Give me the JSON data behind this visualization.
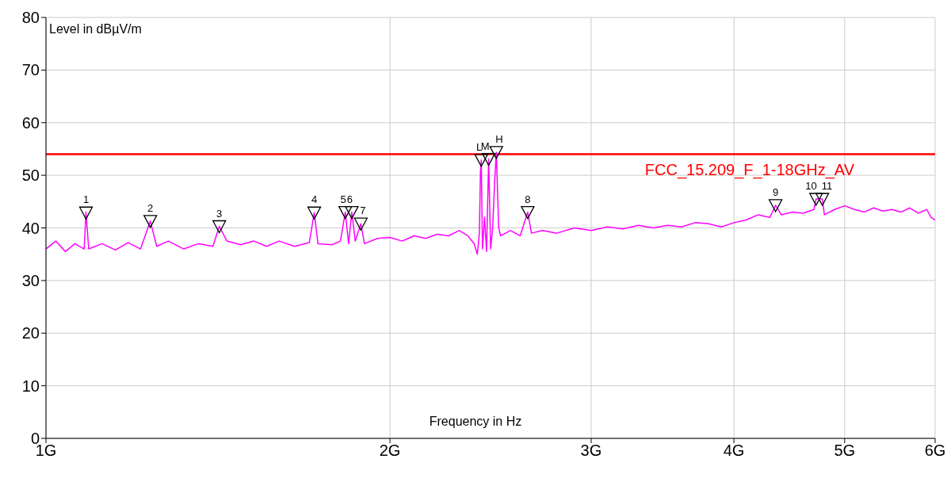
{
  "chart_data": {
    "type": "line",
    "ylabel": "Level in dBµV/m",
    "xlabel": "Frequency in Hz",
    "log": "x",
    "grid": true,
    "xlim": [
      1,
      6
    ],
    "xticks": [
      {
        "value": 1,
        "label": "1G"
      },
      {
        "value": 2,
        "label": "2G"
      },
      {
        "value": 3,
        "label": "3G"
      },
      {
        "value": 4,
        "label": "4G"
      },
      {
        "value": 5,
        "label": "5G"
      },
      {
        "value": 6,
        "label": "6G"
      }
    ],
    "ylim": [
      0,
      80
    ],
    "yticks": [
      0,
      10,
      20,
      30,
      40,
      50,
      60,
      70,
      80
    ],
    "ref_lines": [
      {
        "axis": "y",
        "value": 54,
        "label": "FCC_15.209_F_1-18GHz_AV",
        "color": "#ff0000"
      }
    ],
    "series": [
      {
        "color": "#ff00ff",
        "marker": "none",
        "x": [
          1.0,
          1.02,
          1.04,
          1.06,
          1.08,
          1.084,
          1.09,
          1.12,
          1.15,
          1.18,
          1.21,
          1.234,
          1.25,
          1.28,
          1.32,
          1.36,
          1.4,
          1.418,
          1.44,
          1.48,
          1.52,
          1.56,
          1.6,
          1.65,
          1.7,
          1.717,
          1.73,
          1.78,
          1.81,
          1.828,
          1.84,
          1.852,
          1.865,
          1.886,
          1.9,
          1.95,
          2.0,
          2.05,
          2.1,
          2.15,
          2.2,
          2.25,
          2.3,
          2.34,
          2.37,
          2.385,
          2.395,
          2.4,
          2.404,
          2.41,
          2.42,
          2.43,
          2.44,
          2.45,
          2.46,
          2.47,
          2.478,
          2.49,
          2.5,
          2.55,
          2.6,
          2.64,
          2.66,
          2.72,
          2.8,
          2.9,
          3.0,
          3.1,
          3.2,
          3.3,
          3.4,
          3.5,
          3.6,
          3.7,
          3.8,
          3.9,
          4.0,
          4.1,
          4.2,
          4.3,
          4.35,
          4.4,
          4.5,
          4.6,
          4.7,
          4.72,
          4.78,
          4.8,
          4.9,
          5.0,
          5.1,
          5.2,
          5.3,
          5.4,
          5.5,
          5.6,
          5.7,
          5.8,
          5.9,
          5.95,
          6.0
        ],
        "values": [
          36,
          37.5,
          35.5,
          37,
          36,
          43,
          36,
          37,
          35.8,
          37.2,
          36,
          41.3,
          36.5,
          37.5,
          36,
          37,
          36.5,
          40.3,
          37.5,
          36.8,
          37.5,
          36.5,
          37.5,
          36.5,
          37.2,
          42.9,
          37,
          36.8,
          37.5,
          43,
          37,
          43,
          37.5,
          40.8,
          37,
          38,
          38.2,
          37.5,
          38.5,
          38,
          38.8,
          38.5,
          39.5,
          38.5,
          37,
          35,
          39,
          50.5,
          52.9,
          36,
          42,
          35.5,
          53.1,
          36,
          40,
          49,
          54.4,
          40,
          38.5,
          39.5,
          38.5,
          43,
          39,
          39.5,
          39,
          40,
          39.5,
          40.2,
          39.8,
          40.5,
          40,
          40.5,
          40.2,
          41,
          40.8,
          40.2,
          41,
          41.5,
          42.5,
          42,
          44.3,
          42.5,
          43,
          42.8,
          43.5,
          45.5,
          45.5,
          42.5,
          43.5,
          44.2,
          43.5,
          43,
          43.8,
          43.2,
          43.5,
          43,
          43.8,
          42.8,
          43.5,
          42,
          41.5
        ]
      },
      {
        "type": "scatter",
        "color": "#000000",
        "marker": "triangle",
        "x": [
          1.084,
          1.234,
          1.418,
          1.717,
          1.828,
          1.852,
          1.886,
          2.404,
          2.44,
          2.478,
          2.64,
          4.35,
          4.72,
          4.78
        ],
        "values": [
          42.9,
          41.3,
          40.3,
          42.9,
          43,
          43,
          40.8,
          52.9,
          53.1,
          54.4,
          43,
          44.3,
          45.5,
          45.5
        ]
      }
    ],
    "annotations": [
      {
        "text": "1",
        "x": 1.084,
        "y": 42.9
      },
      {
        "text": "2",
        "x": 1.234,
        "y": 41.3
      },
      {
        "text": "3",
        "x": 1.418,
        "y": 40.3
      },
      {
        "text": "4",
        "x": 1.717,
        "y": 42.9
      },
      {
        "text": "5",
        "x": 1.828,
        "y": 43
      },
      {
        "text": "6",
        "x": 1.852,
        "y": 43
      },
      {
        "text": "7",
        "x": 1.886,
        "y": 40.8
      },
      {
        "text": "L",
        "x": 2.404,
        "y": 52.9
      },
      {
        "text": "M",
        "x": 2.44,
        "y": 53.1
      },
      {
        "text": "H",
        "x": 2.478,
        "y": 54.4
      },
      {
        "text": "8",
        "x": 2.64,
        "y": 43
      },
      {
        "text": "9",
        "x": 4.35,
        "y": 44.3
      },
      {
        "text": "10",
        "x": 4.72,
        "y": 45.5
      },
      {
        "text": "11",
        "x": 4.78,
        "y": 45.5
      }
    ]
  }
}
